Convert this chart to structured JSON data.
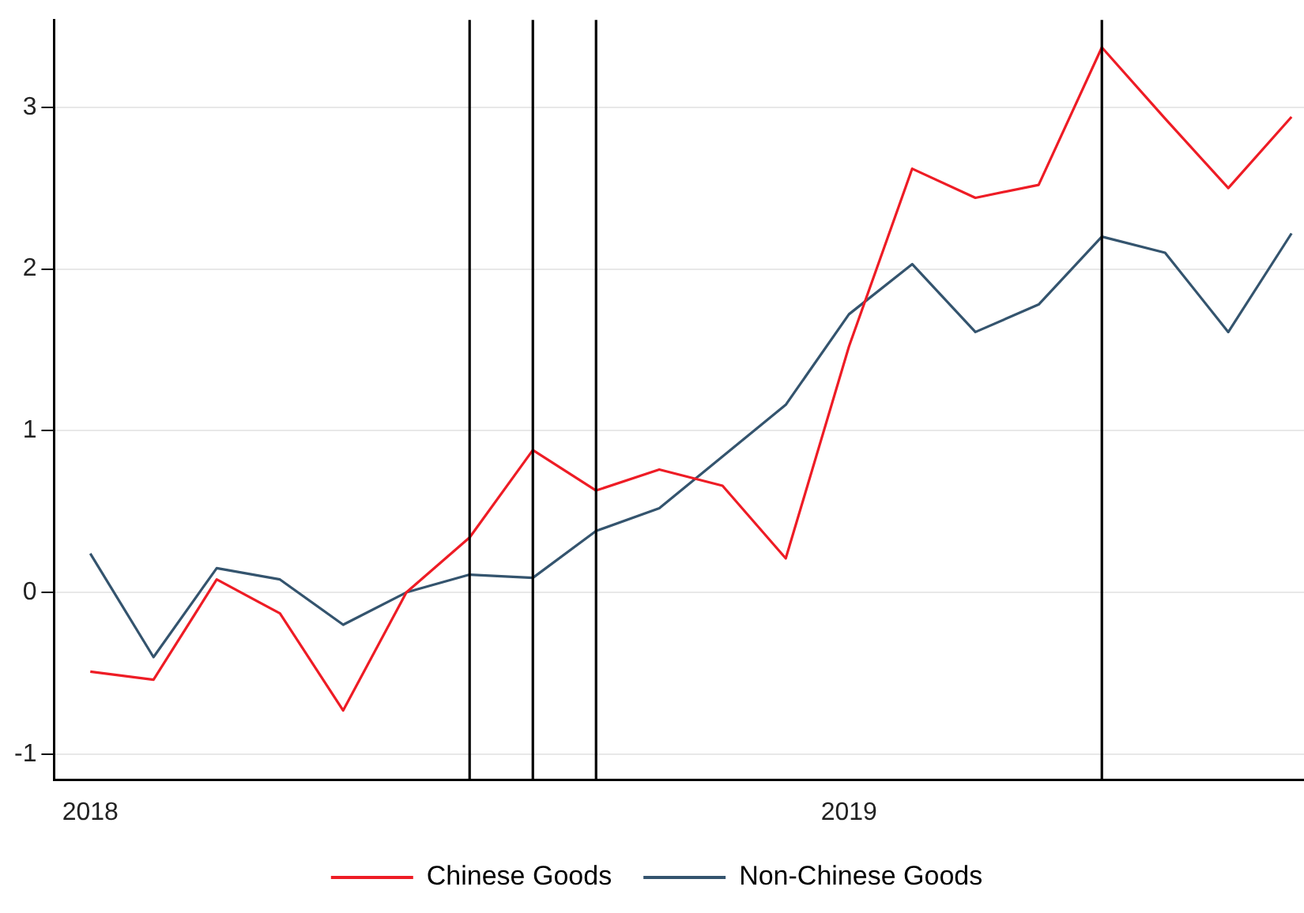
{
  "chart_data": {
    "type": "line",
    "x": [
      "2018-01",
      "2018-02",
      "2018-03",
      "2018-04",
      "2018-05",
      "2018-06",
      "2018-07",
      "2018-08",
      "2018-09",
      "2018-10",
      "2018-11",
      "2018-12",
      "2019-01",
      "2019-02",
      "2019-03",
      "2019-04",
      "2019-05",
      "2019-06",
      "2019-07",
      "2019-08"
    ],
    "series": [
      {
        "name": "Chinese Goods",
        "color": "#ee1c25",
        "values": [
          -0.49,
          -0.54,
          0.08,
          -0.13,
          -0.73,
          0,
          0.34,
          0.88,
          0.63,
          0.76,
          0.66,
          0.21,
          1.52,
          2.62,
          2.44,
          2.52,
          3.37,
          2.93,
          2.5,
          2.94
        ]
      },
      {
        "name": "Non-Chinese Goods",
        "color": "#34546e",
        "values": [
          0.24,
          -0.4,
          0.15,
          0.08,
          -0.2,
          0,
          0.11,
          0.09,
          0.38,
          0.52,
          0.84,
          1.16,
          1.72,
          2.03,
          1.61,
          1.78,
          2.2,
          2.1,
          1.61,
          2.22
        ]
      }
    ],
    "xlim": [
      "2017-12-14",
      "2019-08-07"
    ],
    "xticks": [
      {
        "value": "2018-01",
        "label": "2018"
      },
      {
        "value": "2019-01",
        "label": "2019"
      }
    ],
    "ylim": [
      -1.16,
      3.54
    ],
    "yticks": [
      -1,
      0,
      1,
      2,
      3
    ],
    "ref_lines": [
      {
        "axis": "x",
        "value": "2018-07",
        "color": "#000000"
      },
      {
        "axis": "x",
        "value": "2018-08",
        "color": "#000000"
      },
      {
        "axis": "x",
        "value": "2018-09",
        "color": "#000000"
      },
      {
        "axis": "x",
        "value": "2019-05",
        "color": "#000000"
      }
    ],
    "grid": "y",
    "legend": "bottom",
    "marker": "none",
    "line_style": "solid"
  }
}
